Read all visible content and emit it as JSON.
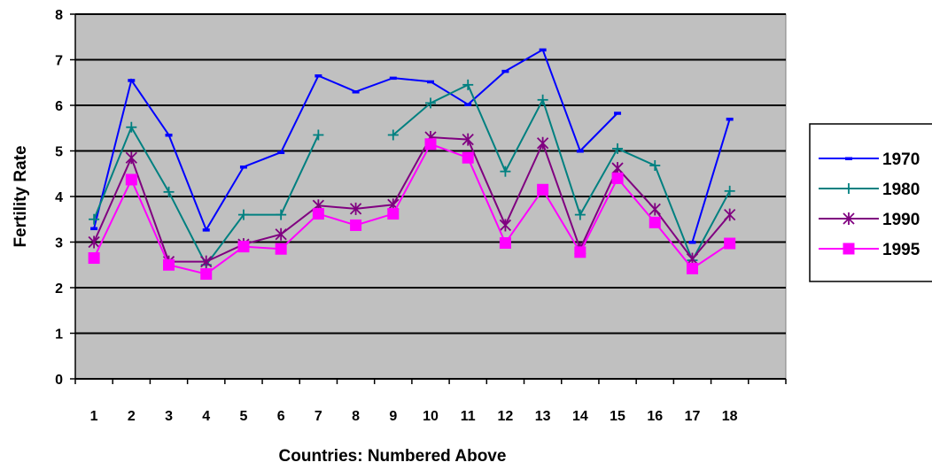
{
  "chart_data": {
    "type": "line",
    "xlabel": "Countries: Numbered Above",
    "ylabel": "Fertility Rate",
    "ylim": [
      0,
      8
    ],
    "y_ticks": [
      0,
      1,
      2,
      3,
      4,
      5,
      6,
      7,
      8
    ],
    "categories": [
      "1",
      "2",
      "3",
      "4",
      "5",
      "6",
      "7",
      "8",
      "9",
      "10",
      "11",
      "12",
      "13",
      "14",
      "15",
      "16",
      "17",
      "18"
    ],
    "grid": true,
    "legend_position": "right",
    "plot_background": "#c0c0c0",
    "series": [
      {
        "name": "1970",
        "color": "#0000ff",
        "marker": "dash",
        "values": [
          3.3,
          6.55,
          5.35,
          3.27,
          4.65,
          4.97,
          6.65,
          6.3,
          6.6,
          6.52,
          6.02,
          6.75,
          7.22,
          5.0,
          5.83,
          null,
          3.0,
          5.7
        ]
      },
      {
        "name": "1980",
        "color": "#008080",
        "marker": "plus",
        "values": [
          3.5,
          5.52,
          4.1,
          2.5,
          3.6,
          3.6,
          5.35,
          null,
          5.35,
          6.05,
          6.45,
          4.55,
          6.12,
          3.6,
          5.05,
          4.68,
          2.6,
          4.12
        ]
      },
      {
        "name": "1990",
        "color": "#800080",
        "marker": "star",
        "values": [
          3.0,
          4.85,
          2.57,
          2.57,
          2.95,
          3.17,
          3.8,
          3.73,
          3.82,
          5.3,
          5.25,
          3.37,
          5.17,
          2.85,
          4.62,
          3.72,
          2.63,
          3.6
        ]
      },
      {
        "name": "1995",
        "color": "#ff00ff",
        "marker": "square",
        "values": [
          2.65,
          4.37,
          2.5,
          2.3,
          2.9,
          2.85,
          3.62,
          3.37,
          3.62,
          5.15,
          4.85,
          2.98,
          4.15,
          2.78,
          4.4,
          3.43,
          2.42,
          2.97
        ]
      }
    ]
  }
}
